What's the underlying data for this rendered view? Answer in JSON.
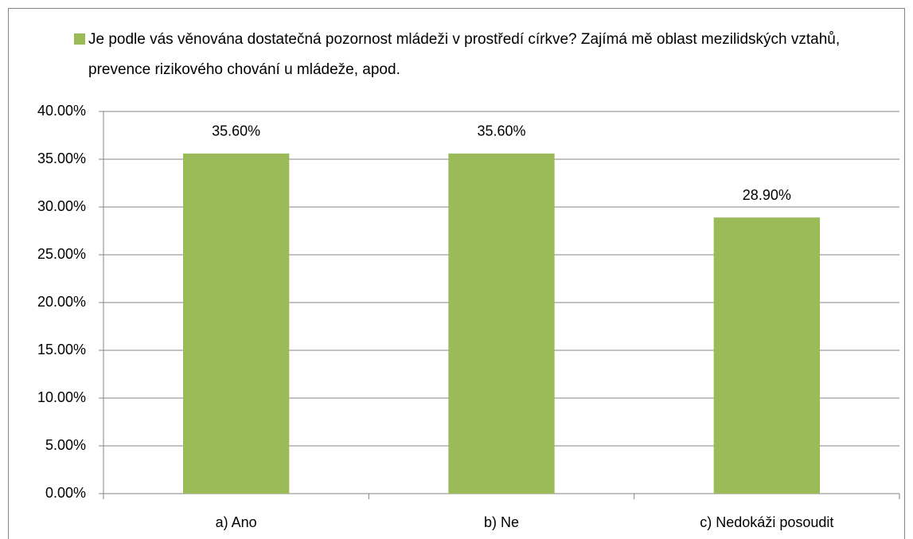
{
  "chart_data": {
    "type": "bar",
    "categories": [
      "a) Ano",
      "b) Ne",
      "c) Nedokáži posoudit"
    ],
    "series": [
      {
        "name": "Je podle vás věnována dostatečná pozornost mládeži v prostředí církve? Zajímá mě oblast mezilidských vztahů, prevence rizikového chování u mládeže, apod.",
        "color": "#9bbb59",
        "values": [
          35.6,
          35.6,
          28.9
        ],
        "value_labels": [
          "35.60%",
          "35.60%",
          "28.90%"
        ]
      }
    ],
    "ylim": [
      0,
      40
    ],
    "yticks": [
      {
        "value": 0,
        "label": "0.00%"
      },
      {
        "value": 5,
        "label": "5.00%"
      },
      {
        "value": 10,
        "label": "10.00%"
      },
      {
        "value": 15,
        "label": "15.00%"
      },
      {
        "value": 20,
        "label": "20.00%"
      },
      {
        "value": 25,
        "label": "25.00%"
      },
      {
        "value": 30,
        "label": "30.00%"
      },
      {
        "value": 35,
        "label": "35.00%"
      },
      {
        "value": 40,
        "label": "40.00%"
      }
    ],
    "grid": true,
    "legend": "top"
  }
}
